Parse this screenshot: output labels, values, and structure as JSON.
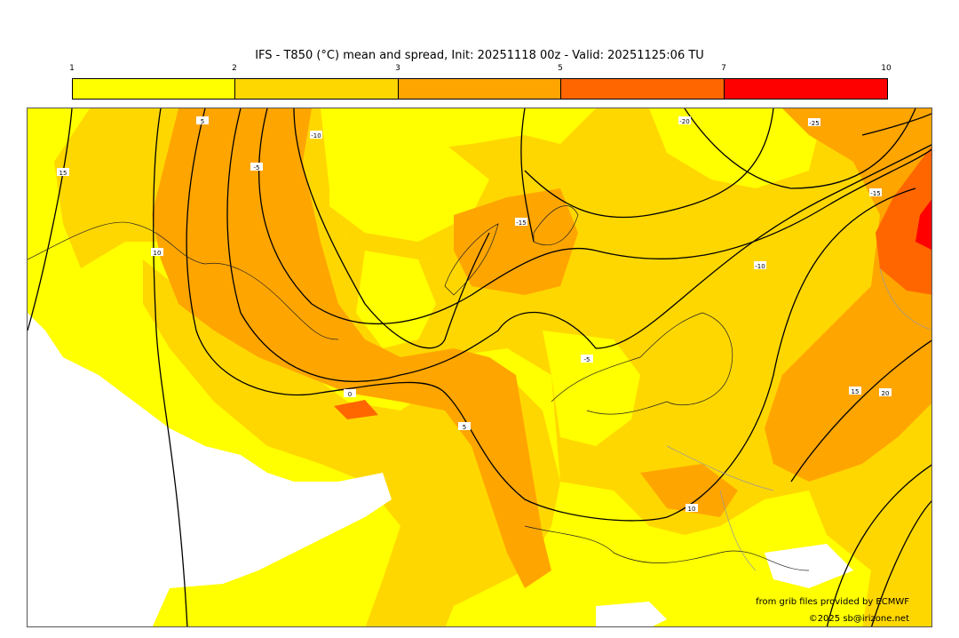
{
  "title": "IFS - T850 (°C) mean and spread, Init: 20251118 00z - Valid: 20251125:06 TU",
  "colorbar": {
    "ticks": [
      "1",
      "2",
      "3",
      "5",
      "7",
      "10"
    ],
    "colors": [
      "#ffff00",
      "#ffd700",
      "#ffa500",
      "#ff6600",
      "#ff0000"
    ]
  },
  "contour_labels": [
    "15",
    "10",
    "5",
    "-5",
    "-10",
    "-15",
    "-20",
    "-25",
    "-15",
    "-10",
    "-5",
    "0",
    "5",
    "10",
    "15",
    "20"
  ],
  "credits": {
    "source": "from grib files provided by ECMWF",
    "copyright": "©2025 sb@irizone.net"
  }
}
